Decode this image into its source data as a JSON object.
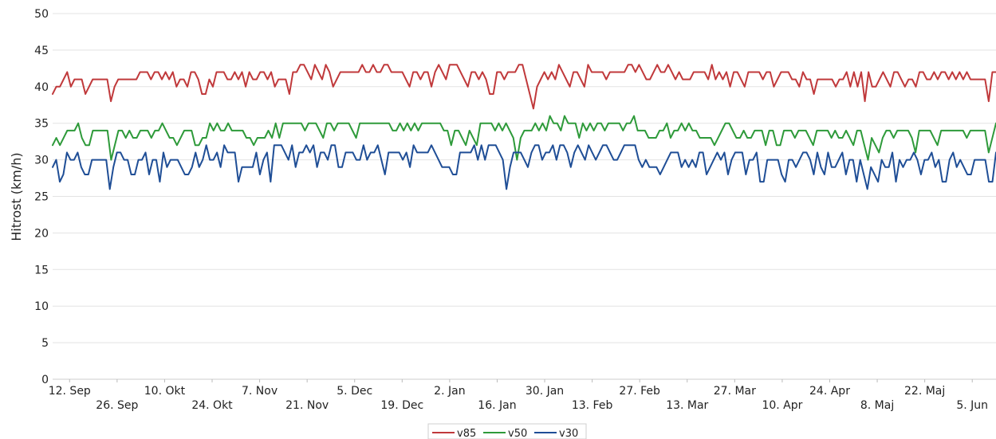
{
  "chart_data": {
    "type": "line",
    "title": "",
    "xlabel": "",
    "ylabel": "Hitrost (km/h)",
    "ylim": [
      0,
      50
    ],
    "yticks": [
      0,
      5,
      10,
      15,
      20,
      25,
      30,
      35,
      40,
      45,
      50
    ],
    "grid": true,
    "legend_position": "bottom-center",
    "x_tick_labels": [
      {
        "label": "12. Sep",
        "date": "2022-09-12"
      },
      {
        "label": "26. Sep",
        "date": "2022-09-26"
      },
      {
        "label": "10. Okt",
        "date": "2022-10-10"
      },
      {
        "label": "24. Okt",
        "date": "2022-10-24"
      },
      {
        "label": "7. Nov",
        "date": "2022-11-07"
      },
      {
        "label": "21. Nov",
        "date": "2022-11-21"
      },
      {
        "label": "5. Dec",
        "date": "2022-12-05"
      },
      {
        "label": "19. Dec",
        "date": "2022-12-19"
      },
      {
        "label": "2. Jan",
        "date": "2023-01-02"
      },
      {
        "label": "16. Jan",
        "date": "2023-01-16"
      },
      {
        "label": "30. Jan",
        "date": "2023-01-30"
      },
      {
        "label": "13. Feb",
        "date": "2023-02-13"
      },
      {
        "label": "27. Feb",
        "date": "2023-02-27"
      },
      {
        "label": "13. Mar",
        "date": "2023-03-13"
      },
      {
        "label": "27. Mar",
        "date": "2023-03-27"
      },
      {
        "label": "10. Apr",
        "date": "2023-04-10"
      },
      {
        "label": "24. Apr",
        "date": "2023-04-24"
      },
      {
        "label": "8. Maj",
        "date": "2023-05-08"
      },
      {
        "label": "22. Maj",
        "date": "2023-05-22"
      },
      {
        "label": "5. Jun",
        "date": "2023-06-05"
      }
    ],
    "x_start": "2022-09-07",
    "x_end": "2023-06-12",
    "series": [
      {
        "name": "v85",
        "color": "#c0393b",
        "values": [
          39,
          40,
          40,
          41,
          42,
          40,
          41,
          41,
          41,
          39,
          40,
          41,
          41,
          41,
          41,
          41,
          38,
          40,
          41,
          41,
          41,
          41,
          41,
          41,
          42,
          42,
          42,
          41,
          42,
          42,
          41,
          42,
          41,
          42,
          40,
          41,
          41,
          40,
          42,
          42,
          41,
          39,
          39,
          41,
          40,
          42,
          42,
          42,
          41,
          41,
          42,
          41,
          42,
          40,
          42,
          41,
          41,
          42,
          42,
          41,
          42,
          40,
          41,
          41,
          41,
          39,
          42,
          42,
          43,
          43,
          42,
          41,
          43,
          42,
          41,
          43,
          42,
          40,
          41,
          42,
          42,
          42,
          42,
          42,
          42,
          43,
          42,
          42,
          43,
          42,
          42,
          43,
          43,
          42,
          42,
          42,
          42,
          41,
          40,
          42,
          42,
          41,
          42,
          42,
          40,
          42,
          43,
          42,
          41,
          43,
          43,
          43,
          42,
          41,
          40,
          42,
          42,
          41,
          42,
          41,
          39,
          39,
          42,
          42,
          41,
          42,
          42,
          42,
          43,
          43,
          41,
          39,
          37,
          40,
          41,
          42,
          41,
          42,
          41,
          43,
          42,
          41,
          40,
          42,
          42,
          41,
          40,
          43,
          42,
          42,
          42,
          42,
          41,
          42,
          42,
          42,
          42,
          42,
          43,
          43,
          42,
          43,
          42,
          41,
          41,
          42,
          43,
          42,
          42,
          43,
          42,
          41,
          42,
          41,
          41,
          41,
          42,
          42,
          42,
          42,
          41,
          43,
          41,
          42,
          41,
          42,
          40,
          42,
          42,
          41,
          40,
          42,
          42,
          42,
          42,
          41,
          42,
          42,
          40,
          41,
          42,
          42,
          42,
          41,
          41,
          40,
          42,
          41,
          41,
          39,
          41,
          41,
          41,
          41,
          41,
          40,
          41,
          41,
          42,
          40,
          42,
          40,
          42,
          38,
          42,
          40,
          40,
          41,
          42,
          41,
          40,
          42,
          42,
          41,
          40,
          41,
          41,
          40,
          42,
          42,
          41,
          41,
          42,
          41,
          42,
          42,
          41,
          42,
          41,
          42,
          41,
          42,
          41,
          41,
          41,
          41,
          41,
          38,
          42,
          42
        ]
      },
      {
        "name": "v50",
        "color": "#2e9a3a",
        "values": [
          32,
          33,
          32,
          33,
          34,
          34,
          34,
          35,
          33,
          32,
          32,
          34,
          34,
          34,
          34,
          34,
          30,
          32,
          34,
          34,
          33,
          34,
          33,
          33,
          34,
          34,
          34,
          33,
          34,
          34,
          35,
          34,
          33,
          33,
          32,
          33,
          34,
          34,
          34,
          32,
          32,
          33,
          33,
          35,
          34,
          35,
          34,
          34,
          35,
          34,
          34,
          34,
          34,
          33,
          33,
          32,
          33,
          33,
          33,
          34,
          33,
          35,
          33,
          35,
          35,
          35,
          35,
          35,
          35,
          34,
          35,
          35,
          35,
          34,
          33,
          35,
          35,
          34,
          35,
          35,
          35,
          35,
          34,
          33,
          35,
          35,
          35,
          35,
          35,
          35,
          35,
          35,
          35,
          34,
          34,
          35,
          34,
          35,
          34,
          35,
          34,
          35,
          35,
          35,
          35,
          35,
          35,
          34,
          34,
          32,
          34,
          34,
          33,
          32,
          34,
          33,
          32,
          35,
          35,
          35,
          35,
          34,
          35,
          34,
          35,
          34,
          33,
          30,
          33,
          34,
          34,
          34,
          35,
          34,
          35,
          34,
          36,
          35,
          35,
          34,
          36,
          35,
          35,
          35,
          33,
          35,
          34,
          35,
          34,
          35,
          35,
          34,
          35,
          35,
          35,
          35,
          34,
          35,
          35,
          36,
          34,
          34,
          34,
          33,
          33,
          33,
          34,
          34,
          35,
          33,
          34,
          34,
          35,
          34,
          35,
          34,
          34,
          33,
          33,
          33,
          33,
          32,
          33,
          34,
          35,
          35,
          34,
          33,
          33,
          34,
          33,
          33,
          34,
          34,
          34,
          32,
          34,
          34,
          32,
          32,
          34,
          34,
          34,
          33,
          34,
          34,
          34,
          33,
          32,
          34,
          34,
          34,
          34,
          33,
          34,
          33,
          33,
          34,
          33,
          32,
          34,
          34,
          32,
          30,
          33,
          32,
          31,
          33,
          34,
          34,
          33,
          34,
          34,
          34,
          34,
          33,
          31,
          34,
          34,
          34,
          34,
          33,
          32,
          34,
          34,
          34,
          34,
          34,
          34,
          34,
          33,
          34,
          34,
          34,
          34,
          34,
          31,
          33,
          35
        ]
      },
      {
        "name": "v30",
        "color": "#1f4e96",
        "values": [
          29,
          30,
          27,
          28,
          31,
          30,
          30,
          31,
          29,
          28,
          28,
          30,
          30,
          30,
          30,
          30,
          26,
          29,
          31,
          31,
          30,
          30,
          28,
          28,
          30,
          30,
          31,
          28,
          30,
          30,
          27,
          31,
          29,
          30,
          30,
          30,
          29,
          28,
          28,
          29,
          31,
          29,
          30,
          32,
          30,
          30,
          31,
          29,
          32,
          31,
          31,
          31,
          27,
          29,
          29,
          29,
          29,
          31,
          28,
          30,
          31,
          27,
          32,
          32,
          32,
          31,
          30,
          32,
          29,
          31,
          31,
          32,
          31,
          32,
          29,
          31,
          31,
          30,
          32,
          32,
          29,
          29,
          31,
          31,
          31,
          30,
          30,
          32,
          30,
          31,
          31,
          32,
          30,
          28,
          31,
          31,
          31,
          31,
          30,
          31,
          29,
          32,
          31,
          31,
          31,
          31,
          32,
          31,
          30,
          29,
          29,
          29,
          28,
          28,
          31,
          31,
          31,
          31,
          32,
          30,
          32,
          30,
          32,
          32,
          32,
          31,
          30,
          26,
          29,
          31,
          31,
          31,
          30,
          29,
          31,
          32,
          32,
          30,
          31,
          31,
          32,
          30,
          32,
          32,
          31,
          29,
          31,
          32,
          31,
          30,
          32,
          31,
          30,
          31,
          32,
          32,
          31,
          30,
          30,
          31,
          32,
          32,
          32,
          32,
          30,
          29,
          30,
          29,
          29,
          29,
          28,
          29,
          30,
          31,
          31,
          31,
          29,
          30,
          29,
          30,
          29,
          31,
          31,
          28,
          29,
          30,
          31,
          30,
          31,
          28,
          30,
          31,
          31,
          31,
          28,
          30,
          30,
          31,
          27,
          27,
          30,
          30,
          30,
          30,
          28,
          27,
          30,
          30,
          29,
          30,
          31,
          31,
          30,
          28,
          31,
          29,
          28,
          31,
          29,
          29,
          30,
          31,
          28,
          30,
          30,
          27,
          30,
          28,
          26,
          29,
          28,
          27,
          30,
          29,
          29,
          31,
          27,
          30,
          29,
          30,
          30,
          31,
          30,
          28,
          30,
          30,
          31,
          29,
          30,
          27,
          27,
          30,
          31,
          29,
          30,
          29,
          28,
          28,
          30,
          30,
          30,
          30,
          27,
          27,
          31
        ]
      }
    ]
  }
}
